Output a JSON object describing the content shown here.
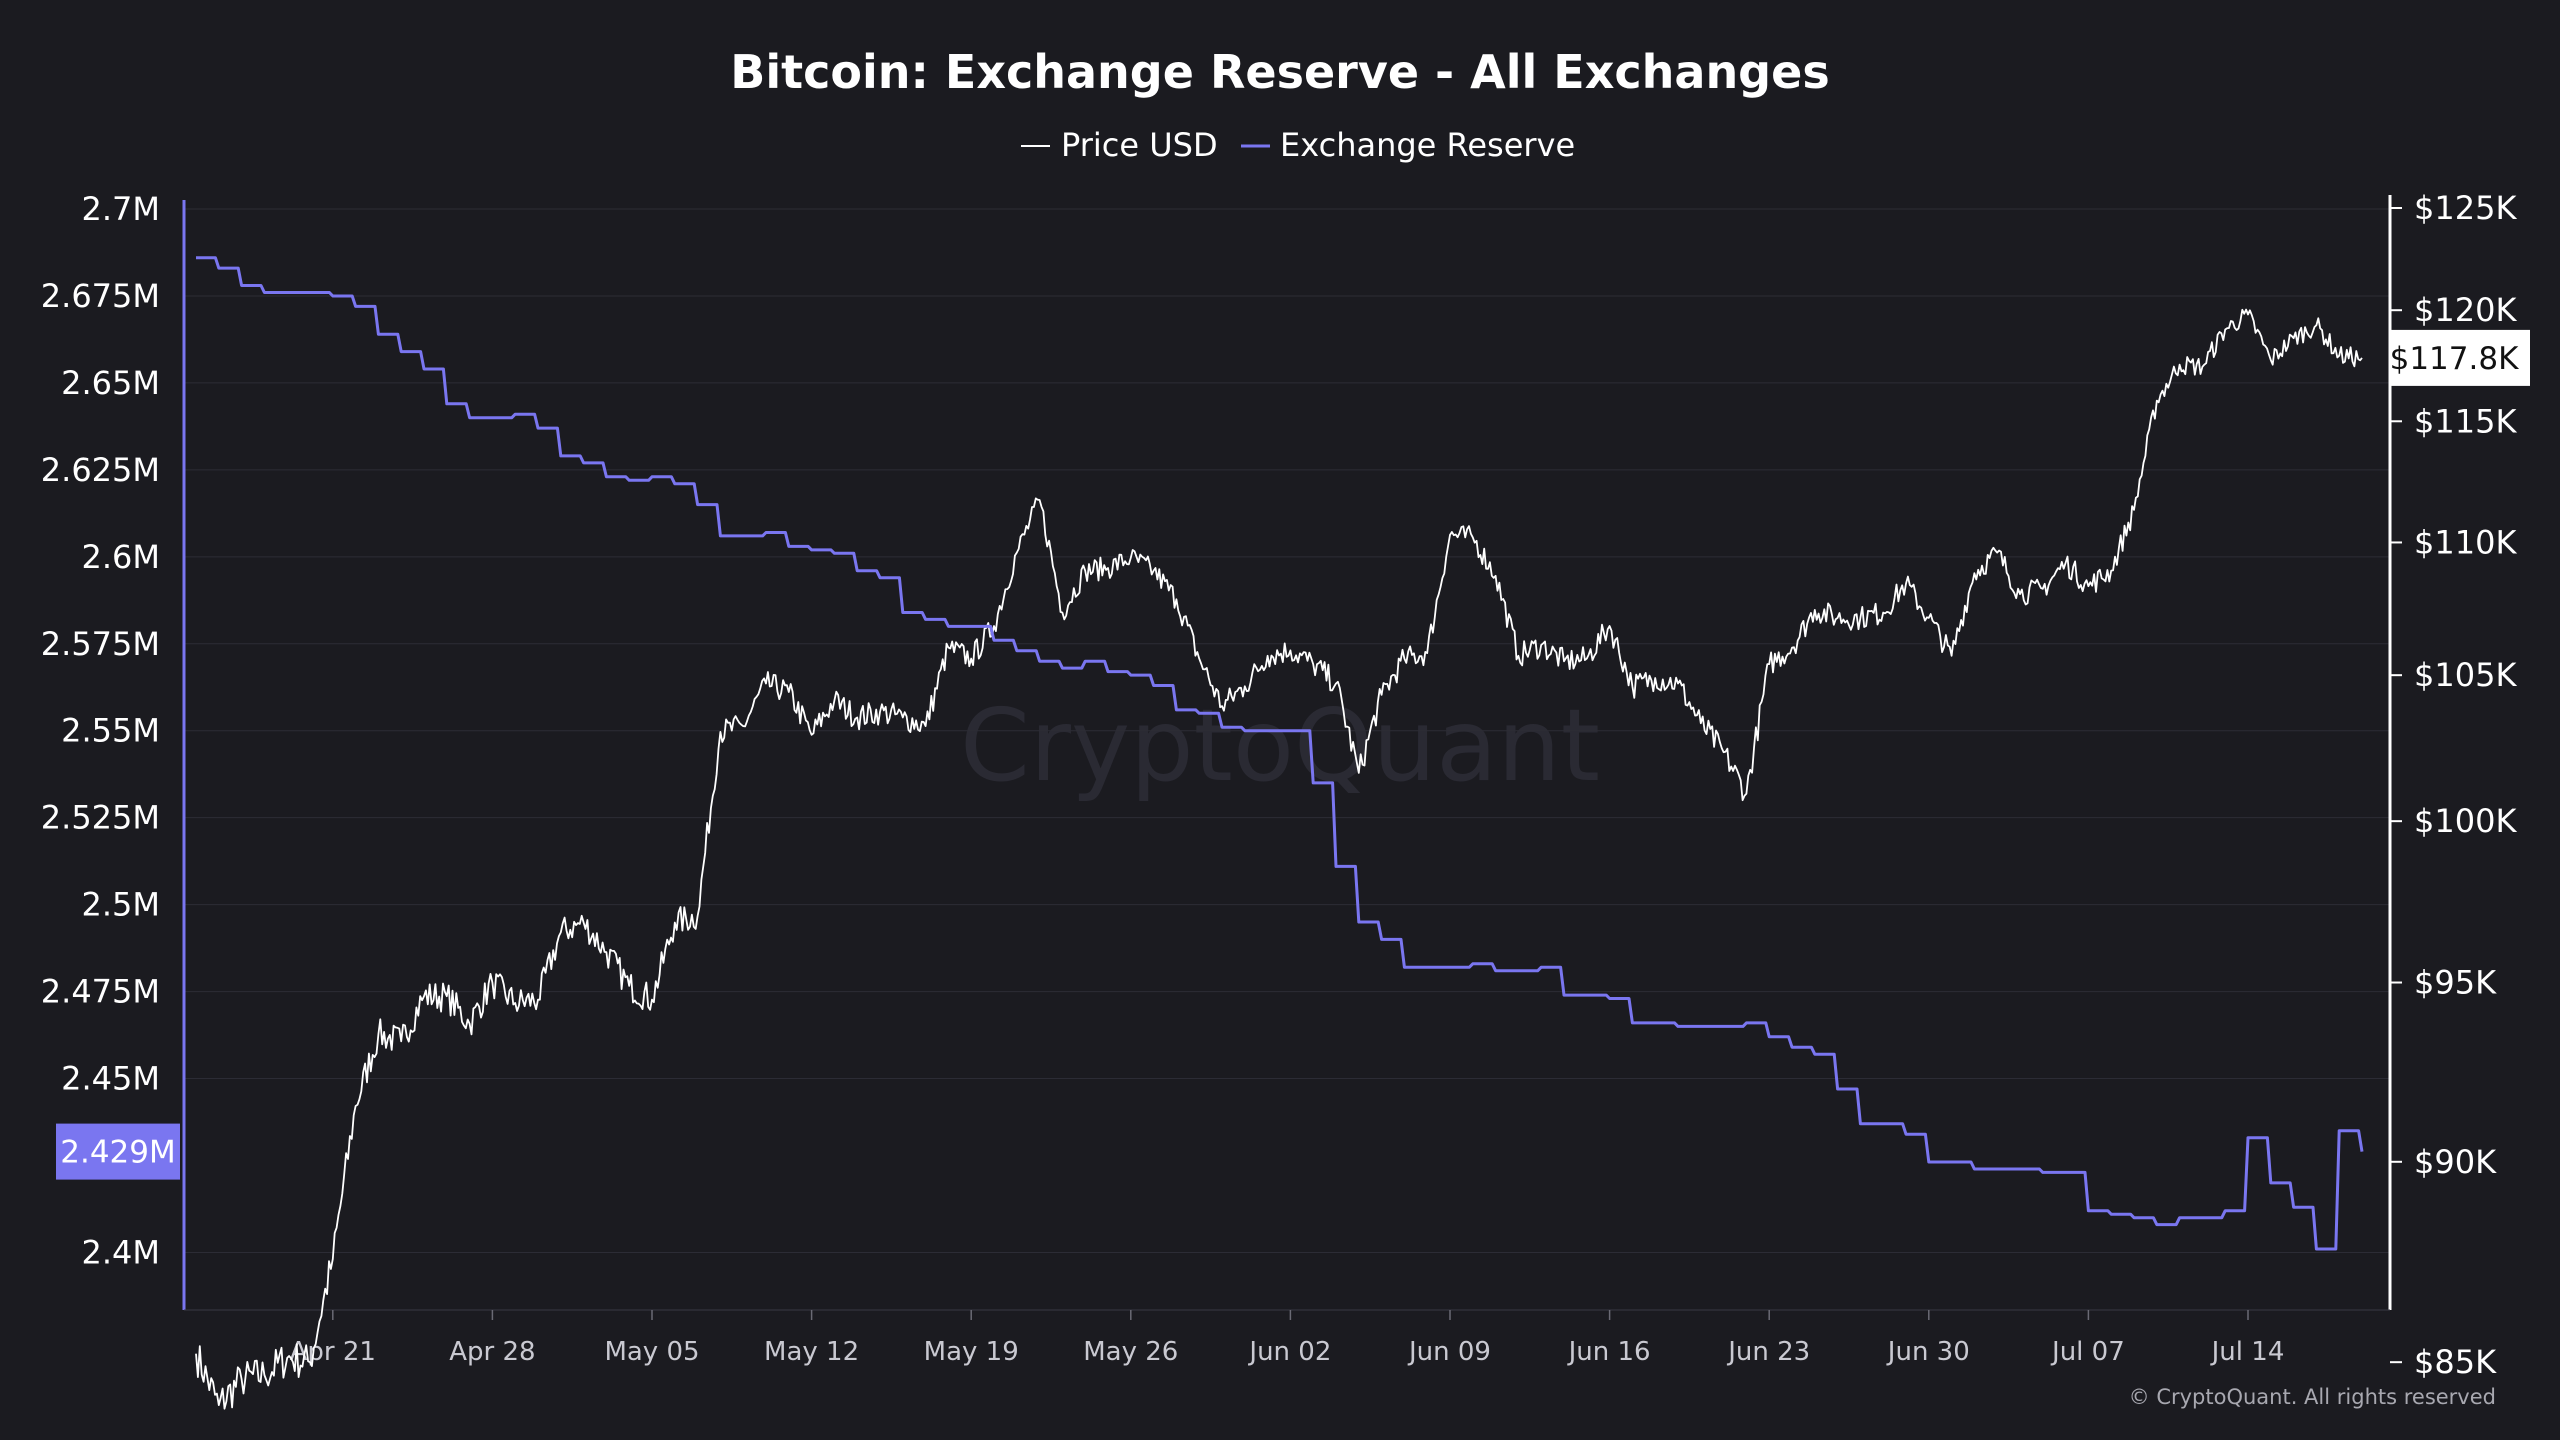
{
  "chart_data": {
    "type": "line",
    "title": "Bitcoin: Exchange Reserve - All Exchanges",
    "watermark": "CryptoQuant",
    "copyright": "© CryptoQuant. All rights reserved",
    "x_ticks": [
      "Apr 21",
      "Apr 28",
      "May 05",
      "May 12",
      "May 19",
      "May 26",
      "Jun 02",
      "Jun 09",
      "Jun 16",
      "Jun 23",
      "Jun 30",
      "Jul 07",
      "Jul 14"
    ],
    "x_range": [
      "2025-04-15",
      "2025-07-19"
    ],
    "y_left": {
      "ticks": [
        "2.7M",
        "2.675M",
        "2.65M",
        "2.625M",
        "2.6M",
        "2.575M",
        "2.55M",
        "2.525M",
        "2.5M",
        "2.475M",
        "2.45M",
        "2.4M"
      ],
      "range": [
        2380000,
        2700000
      ]
    },
    "y_right": {
      "ticks": [
        "$125K",
        "$120K",
        "$115K",
        "$110K",
        "$105K",
        "$100K",
        "$95K",
        "$90K",
        "$85K"
      ],
      "tick_values": [
        125000,
        120000,
        115000,
        110000,
        105000,
        100000,
        95000,
        90000,
        85000
      ]
    },
    "legend": {
      "position": "top-center"
    },
    "series": [
      {
        "name": "Price USD",
        "color": "#ffffff",
        "axis": "right",
        "last_value_label": "$117.8K",
        "points": [
          [
            "2025-04-15",
            85200
          ],
          [
            "2025-04-16",
            84000
          ],
          [
            "2025-04-17",
            84600
          ],
          [
            "2025-04-18",
            84700
          ],
          [
            "2025-04-19",
            85100
          ],
          [
            "2025-04-20",
            85000
          ],
          [
            "2025-04-21",
            87500
          ],
          [
            "2025-04-22",
            91500
          ],
          [
            "2025-04-23",
            93500
          ],
          [
            "2025-04-24",
            93300
          ],
          [
            "2025-04-25",
            94600
          ],
          [
            "2025-04-26",
            94600
          ],
          [
            "2025-04-27",
            93800
          ],
          [
            "2025-04-28",
            95000
          ],
          [
            "2025-04-29",
            94400
          ],
          [
            "2025-04-30",
            94500
          ],
          [
            "2025-05-01",
            96500
          ],
          [
            "2025-05-02",
            96800
          ],
          [
            "2025-05-03",
            95900
          ],
          [
            "2025-05-04",
            94900
          ],
          [
            "2025-05-05",
            94500
          ],
          [
            "2025-05-06",
            96800
          ],
          [
            "2025-05-07",
            97000
          ],
          [
            "2025-05-08",
            103000
          ],
          [
            "2025-05-09",
            103200
          ],
          [
            "2025-05-10",
            104700
          ],
          [
            "2025-05-11",
            104400
          ],
          [
            "2025-05-12",
            102900
          ],
          [
            "2025-05-13",
            104100
          ],
          [
            "2025-05-14",
            103500
          ],
          [
            "2025-05-15",
            103700
          ],
          [
            "2025-05-16",
            103500
          ],
          [
            "2025-05-17",
            103200
          ],
          [
            "2025-05-18",
            106000
          ],
          [
            "2025-05-19",
            105600
          ],
          [
            "2025-05-20",
            106800
          ],
          [
            "2025-05-21",
            109600
          ],
          [
            "2025-05-22",
            111700
          ],
          [
            "2025-05-23",
            107300
          ],
          [
            "2025-05-24",
            108900
          ],
          [
            "2025-05-25",
            109000
          ],
          [
            "2025-05-26",
            109400
          ],
          [
            "2025-05-27",
            108900
          ],
          [
            "2025-05-28",
            107800
          ],
          [
            "2025-05-29",
            105600
          ],
          [
            "2025-05-30",
            103900
          ],
          [
            "2025-05-31",
            104600
          ],
          [
            "2025-06-01",
            105700
          ],
          [
            "2025-06-02",
            105900
          ],
          [
            "2025-06-03",
            105400
          ],
          [
            "2025-06-04",
            104700
          ],
          [
            "2025-06-05",
            101600
          ],
          [
            "2025-06-06",
            104300
          ],
          [
            "2025-06-07",
            105600
          ],
          [
            "2025-06-08",
            105800
          ],
          [
            "2025-06-09",
            110300
          ],
          [
            "2025-06-10",
            110200
          ],
          [
            "2025-06-11",
            108700
          ],
          [
            "2025-06-12",
            105700
          ],
          [
            "2025-06-13",
            106100
          ],
          [
            "2025-06-14",
            105500
          ],
          [
            "2025-06-15",
            105600
          ],
          [
            "2025-06-16",
            106800
          ],
          [
            "2025-06-17",
            104600
          ],
          [
            "2025-06-18",
            104900
          ],
          [
            "2025-06-19",
            104700
          ],
          [
            "2025-06-20",
            103300
          ],
          [
            "2025-06-21",
            102300
          ],
          [
            "2025-06-22",
            100900
          ],
          [
            "2025-06-23",
            105400
          ],
          [
            "2025-06-24",
            106000
          ],
          [
            "2025-06-25",
            107400
          ],
          [
            "2025-06-26",
            107100
          ],
          [
            "2025-06-27",
            107100
          ],
          [
            "2025-06-28",
            107300
          ],
          [
            "2025-06-29",
            108400
          ],
          [
            "2025-06-30",
            107100
          ],
          [
            "2025-07-01",
            105700
          ],
          [
            "2025-07-02",
            108800
          ],
          [
            "2025-07-03",
            109600
          ],
          [
            "2025-07-04",
            108000
          ],
          [
            "2025-07-05",
            108200
          ],
          [
            "2025-07-06",
            109200
          ],
          [
            "2025-07-07",
            108300
          ],
          [
            "2025-07-08",
            108900
          ],
          [
            "2025-07-09",
            111300
          ],
          [
            "2025-07-10",
            115900
          ],
          [
            "2025-07-11",
            117500
          ],
          [
            "2025-07-12",
            117400
          ],
          [
            "2025-07-13",
            119100
          ],
          [
            "2025-07-14",
            119800
          ],
          [
            "2025-07-15",
            117700
          ],
          [
            "2025-07-16",
            118700
          ],
          [
            "2025-07-17",
            119300
          ],
          [
            "2025-07-18",
            117900
          ],
          [
            "2025-07-19",
            117800
          ]
        ]
      },
      {
        "name": "Exchange Reserve",
        "color": "#7a76f0",
        "axis": "left",
        "last_value_label": "2.429M",
        "points": [
          [
            "2025-04-15",
            2686000
          ],
          [
            "2025-04-16",
            2683000
          ],
          [
            "2025-04-17",
            2678000
          ],
          [
            "2025-04-18",
            2676000
          ],
          [
            "2025-04-19",
            2676000
          ],
          [
            "2025-04-20",
            2676000
          ],
          [
            "2025-04-21",
            2675000
          ],
          [
            "2025-04-22",
            2672000
          ],
          [
            "2025-04-23",
            2664000
          ],
          [
            "2025-04-24",
            2659000
          ],
          [
            "2025-04-25",
            2654000
          ],
          [
            "2025-04-26",
            2644000
          ],
          [
            "2025-04-27",
            2640000
          ],
          [
            "2025-04-28",
            2640000
          ],
          [
            "2025-04-29",
            2641000
          ],
          [
            "2025-04-30",
            2637000
          ],
          [
            "2025-05-01",
            2629000
          ],
          [
            "2025-05-02",
            2627000
          ],
          [
            "2025-05-03",
            2623000
          ],
          [
            "2025-05-04",
            2622000
          ],
          [
            "2025-05-05",
            2623000
          ],
          [
            "2025-05-06",
            2621000
          ],
          [
            "2025-05-07",
            2615000
          ],
          [
            "2025-05-08",
            2606000
          ],
          [
            "2025-05-09",
            2606000
          ],
          [
            "2025-05-10",
            2607000
          ],
          [
            "2025-05-11",
            2603000
          ],
          [
            "2025-05-12",
            2602000
          ],
          [
            "2025-05-13",
            2601000
          ],
          [
            "2025-05-14",
            2596000
          ],
          [
            "2025-05-15",
            2594000
          ],
          [
            "2025-05-16",
            2584000
          ],
          [
            "2025-05-17",
            2582000
          ],
          [
            "2025-05-18",
            2580000
          ],
          [
            "2025-05-19",
            2580000
          ],
          [
            "2025-05-20",
            2576000
          ],
          [
            "2025-05-21",
            2573000
          ],
          [
            "2025-05-22",
            2570000
          ],
          [
            "2025-05-23",
            2568000
          ],
          [
            "2025-05-24",
            2570000
          ],
          [
            "2025-05-25",
            2567000
          ],
          [
            "2025-05-26",
            2566000
          ],
          [
            "2025-05-27",
            2563000
          ],
          [
            "2025-05-28",
            2556000
          ],
          [
            "2025-05-29",
            2555000
          ],
          [
            "2025-05-30",
            2551000
          ],
          [
            "2025-05-31",
            2550000
          ],
          [
            "2025-06-01",
            2550000
          ],
          [
            "2025-06-02",
            2550000
          ],
          [
            "2025-06-03",
            2535000
          ],
          [
            "2025-06-04",
            2511000
          ],
          [
            "2025-06-05",
            2495000
          ],
          [
            "2025-06-06",
            2490000
          ],
          [
            "2025-06-07",
            2482000
          ],
          [
            "2025-06-08",
            2482000
          ],
          [
            "2025-06-09",
            2482000
          ],
          [
            "2025-06-10",
            2483000
          ],
          [
            "2025-06-11",
            2481000
          ],
          [
            "2025-06-12",
            2481000
          ],
          [
            "2025-06-13",
            2482000
          ],
          [
            "2025-06-14",
            2474000
          ],
          [
            "2025-06-15",
            2474000
          ],
          [
            "2025-06-16",
            2473000
          ],
          [
            "2025-06-17",
            2466000
          ],
          [
            "2025-06-18",
            2466000
          ],
          [
            "2025-06-19",
            2465000
          ],
          [
            "2025-06-20",
            2465000
          ],
          [
            "2025-06-21",
            2465000
          ],
          [
            "2025-06-22",
            2466000
          ],
          [
            "2025-06-23",
            2462000
          ],
          [
            "2025-06-24",
            2459000
          ],
          [
            "2025-06-25",
            2457000
          ],
          [
            "2025-06-26",
            2447000
          ],
          [
            "2025-06-27",
            2437000
          ],
          [
            "2025-06-28",
            2437000
          ],
          [
            "2025-06-29",
            2434000
          ],
          [
            "2025-06-30",
            2426000
          ],
          [
            "2025-07-01",
            2426000
          ],
          [
            "2025-07-02",
            2424000
          ],
          [
            "2025-07-03",
            2424000
          ],
          [
            "2025-07-04",
            2424000
          ],
          [
            "2025-07-05",
            2423000
          ],
          [
            "2025-07-06",
            2423000
          ],
          [
            "2025-07-07",
            2412000
          ],
          [
            "2025-07-08",
            2411000
          ],
          [
            "2025-07-09",
            2410000
          ],
          [
            "2025-07-10",
            2408000
          ],
          [
            "2025-07-11",
            2410000
          ],
          [
            "2025-07-12",
            2410000
          ],
          [
            "2025-07-13",
            2412000
          ],
          [
            "2025-07-14",
            2433000
          ],
          [
            "2025-07-15",
            2420000
          ],
          [
            "2025-07-16",
            2413000
          ],
          [
            "2025-07-17",
            2401000
          ],
          [
            "2025-07-18",
            2435000
          ],
          [
            "2025-07-19",
            2429000
          ]
        ]
      }
    ]
  }
}
